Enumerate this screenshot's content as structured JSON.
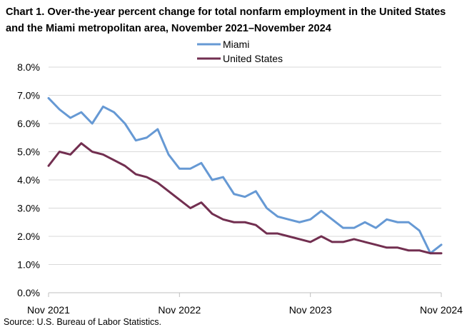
{
  "chart_data": {
    "type": "line",
    "title": "Chart 1. Over-the-year percent change for total nonfarm employment in the United States and the Miami metropolitan area, November 2021–November 2024",
    "source": "Source: U.S. Bureau of Labor Statistics.",
    "ylim": [
      0,
      8
    ],
    "y_ticks": [
      "0.0%",
      "1.0%",
      "2.0%",
      "3.0%",
      "4.0%",
      "5.0%",
      "6.0%",
      "7.0%",
      "8.0%"
    ],
    "x_ticks": [
      "Nov 2021",
      "Nov 2022",
      "Nov 2023",
      "Nov 2024"
    ],
    "x_tick_index": [
      0,
      12,
      24,
      36
    ],
    "legend_position": "top-center",
    "series": [
      {
        "name": "Miami",
        "color": "#6699d4",
        "values": [
          6.9,
          6.5,
          6.2,
          6.4,
          6.0,
          6.6,
          6.4,
          6.0,
          5.4,
          5.5,
          5.8,
          4.9,
          4.4,
          4.4,
          4.6,
          4.0,
          4.1,
          3.5,
          3.4,
          3.6,
          3.0,
          2.7,
          2.6,
          2.5,
          2.6,
          2.9,
          2.6,
          2.3,
          2.3,
          2.5,
          2.3,
          2.6,
          2.5,
          2.5,
          2.2,
          1.4,
          1.7
        ]
      },
      {
        "name": "United States",
        "color": "#722f50",
        "values": [
          4.5,
          5.0,
          4.9,
          5.3,
          5.0,
          4.9,
          4.7,
          4.5,
          4.2,
          4.1,
          3.9,
          3.6,
          3.3,
          3.0,
          3.2,
          2.8,
          2.6,
          2.5,
          2.5,
          2.4,
          2.1,
          2.1,
          2.0,
          1.9,
          1.8,
          2.0,
          1.8,
          1.8,
          1.9,
          1.8,
          1.7,
          1.6,
          1.6,
          1.5,
          1.5,
          1.4,
          1.4
        ]
      }
    ]
  }
}
